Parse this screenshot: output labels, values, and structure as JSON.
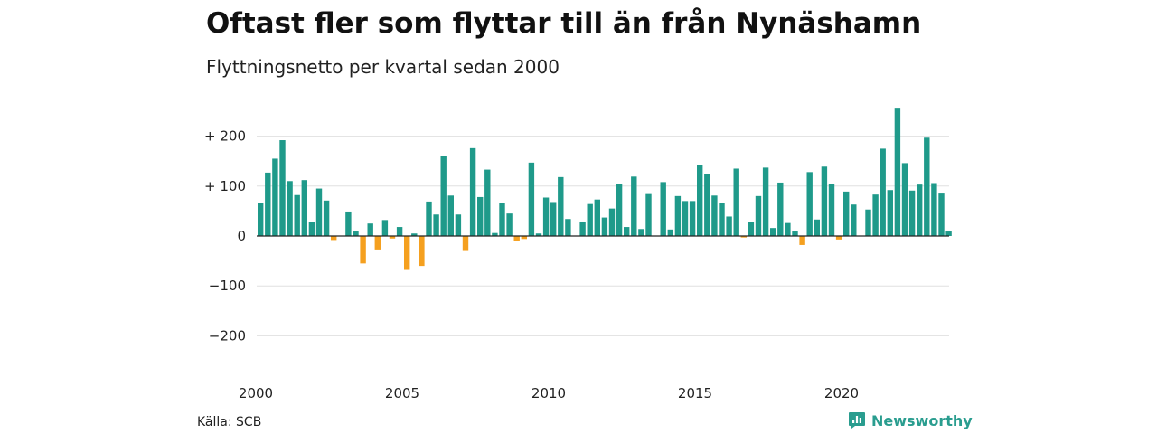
{
  "header": {
    "title": "Oftast fler som flyttar till än från Nynäshamn",
    "subtitle": "Flyttningsnetto per kvartal sedan 2000"
  },
  "footer": {
    "source": "Källa: SCB",
    "brand": "Newsworthy",
    "brand_icon": "newsworthy-logo-icon"
  },
  "colors": {
    "positive": "#1f9a8a",
    "negative": "#f5a01f",
    "grid": "#e0e0e0",
    "baseline": "#222222",
    "brand": "#2a9d8f"
  },
  "chart_data": {
    "type": "bar",
    "title": "Oftast fler som flyttar till än från Nynäshamn",
    "subtitle": "Flyttningsnetto per kvartal sedan 2000",
    "xlabel": "",
    "ylabel": "",
    "ylim": [
      -250,
      260
    ],
    "yticks": [
      200,
      100,
      0,
      -100,
      -200
    ],
    "ytick_labels": [
      "+ 200",
      "+ 100",
      "0",
      "−100",
      "−200"
    ],
    "xtick_labels": [
      "2000",
      "2005",
      "2010",
      "2015",
      "2020"
    ],
    "grid": true,
    "legend": "none",
    "start_year": 2000,
    "periods_per_year": 4,
    "values": [
      67,
      127,
      155,
      192,
      110,
      82,
      112,
      28,
      95,
      71,
      -8,
      0,
      49,
      9,
      -55,
      25,
      -27,
      32,
      -5,
      18,
      -68,
      5,
      -60,
      69,
      43,
      161,
      81,
      43,
      -30,
      176,
      78,
      133,
      6,
      67,
      45,
      -9,
      -6,
      147,
      5,
      77,
      68,
      118,
      34,
      0,
      29,
      64,
      73,
      37,
      55,
      104,
      18,
      119,
      14,
      84,
      0,
      108,
      13,
      80,
      70,
      70,
      143,
      125,
      81,
      66,
      39,
      135,
      -3,
      28,
      80,
      137,
      16,
      107,
      26,
      9,
      -18,
      128,
      33,
      139,
      104,
      -7,
      89,
      63,
      0,
      53,
      83,
      175,
      92,
      257,
      146,
      91,
      103,
      197,
      106,
      85,
      9
    ]
  }
}
